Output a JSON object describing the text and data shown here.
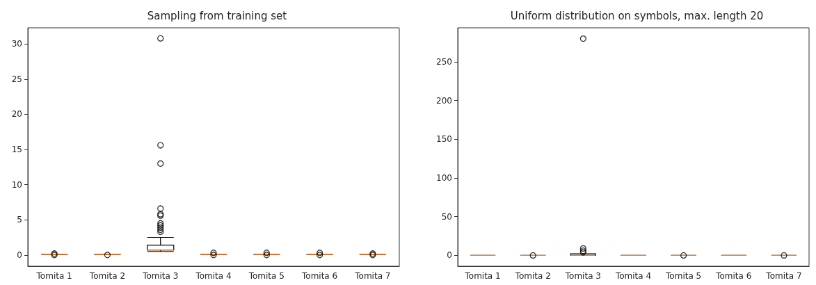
{
  "chart_data": [
    {
      "type": "box",
      "title": "Sampling from training set",
      "categories": [
        "Tomita 1",
        "Tomita 2",
        "Tomita 3",
        "Tomita 4",
        "Tomita 5",
        "Tomita 6",
        "Tomita 7"
      ],
      "boxes": [
        {
          "low": 0.1,
          "q1": 0.1,
          "median": 0.1,
          "q3": 0.1,
          "high": 0.1,
          "outliers": [
            0,
            0.2
          ]
        },
        {
          "low": 0.1,
          "q1": 0.1,
          "median": 0.1,
          "q3": 0.1,
          "high": 0.1,
          "outliers": [
            0
          ]
        },
        {
          "low": 0.5,
          "q1": 0.7,
          "median": 0.7,
          "q3": 1.4,
          "high": 2.5,
          "outliers": [
            3.3,
            3.6,
            3.9,
            4.2,
            4.5,
            5.6,
            5.8,
            6.6,
            13,
            15.6,
            30.8
          ]
        },
        {
          "low": 0.1,
          "q1": 0.1,
          "median": 0.1,
          "q3": 0.1,
          "high": 0.1,
          "outliers": [
            0,
            0.3
          ]
        },
        {
          "low": 0.1,
          "q1": 0.1,
          "median": 0.1,
          "q3": 0.1,
          "high": 0.1,
          "outliers": [
            0,
            0.3
          ]
        },
        {
          "low": 0.1,
          "q1": 0.1,
          "median": 0.1,
          "q3": 0.1,
          "high": 0.1,
          "outliers": [
            0,
            0.3
          ]
        },
        {
          "low": 0.1,
          "q1": 0.1,
          "median": 0.1,
          "q3": 0.1,
          "high": 0.1,
          "outliers": [
            0,
            0.2
          ]
        }
      ],
      "ylim": [
        -1.6,
        32.3
      ],
      "yticks": [
        0,
        5,
        10,
        15,
        20,
        25,
        30
      ],
      "grid": false
    },
    {
      "type": "box",
      "title": "Uniform distribution on symbols, max. length 20",
      "categories": [
        "Tomita 1",
        "Tomita 2",
        "Tomita 3",
        "Tomita 4",
        "Tomita 5",
        "Tomita 6",
        "Tomita 7"
      ],
      "boxes": [
        {
          "low": 0,
          "q1": 0,
          "median": 0,
          "q3": 0,
          "high": 0
        },
        {
          "low": 0,
          "q1": 0,
          "median": 0,
          "q3": 0,
          "high": 0,
          "outliers": [
            0
          ]
        },
        {
          "low": 0,
          "q1": 0,
          "median": 0,
          "q3": 2,
          "high": 2,
          "outliers": [
            4,
            6,
            9,
            280
          ]
        },
        {
          "low": 0,
          "q1": 0,
          "median": 0,
          "q3": 0,
          "high": 0
        },
        {
          "low": 0,
          "q1": 0,
          "median": 0,
          "q3": 0,
          "high": 0,
          "outliers": [
            0
          ]
        },
        {
          "low": 0,
          "q1": 0,
          "median": 0,
          "q3": 0,
          "high": 0
        },
        {
          "low": 0,
          "q1": 0,
          "median": 0,
          "q3": 0,
          "high": 0,
          "outliers": [
            0
          ]
        }
      ],
      "ylim": [
        -14,
        294
      ],
      "yticks": [
        0,
        50,
        100,
        150,
        200,
        250
      ],
      "grid": false
    }
  ]
}
